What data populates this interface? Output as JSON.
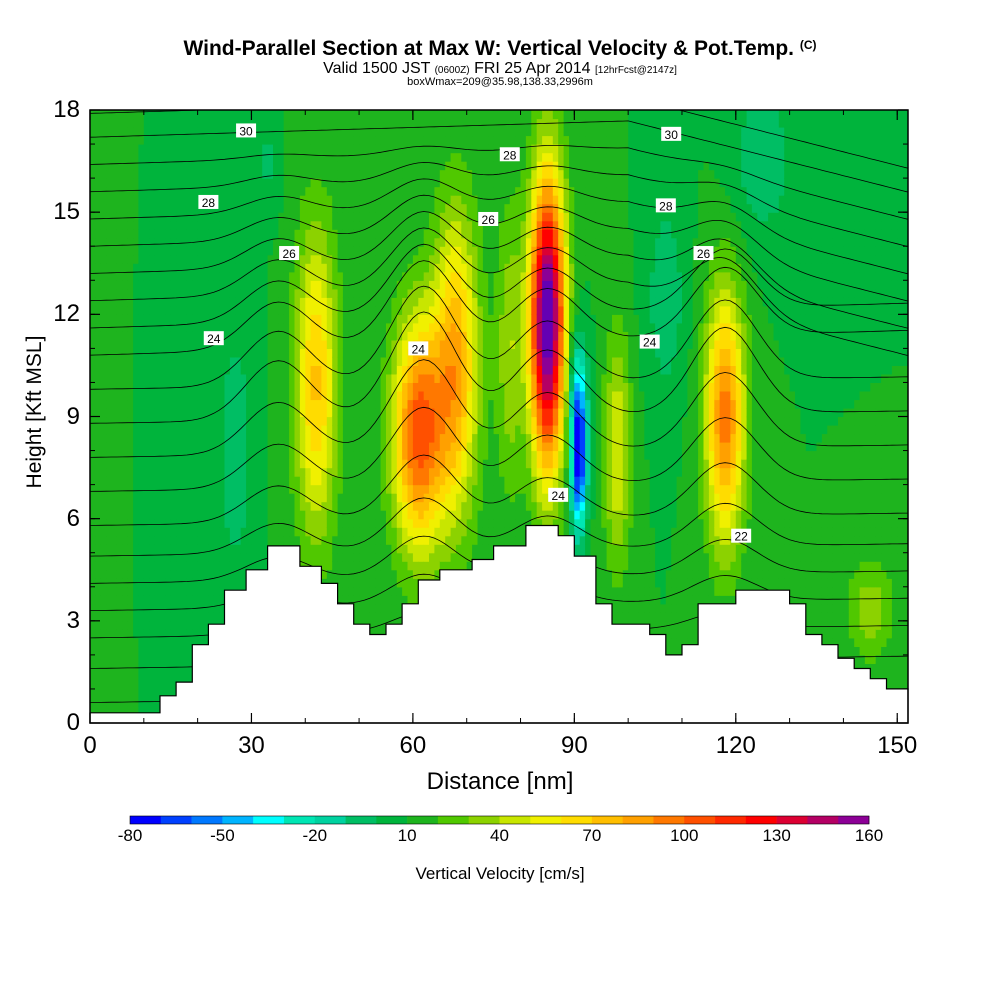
{
  "header": {
    "title": "Wind-Parallel Section at Max W: Vertical Velocity & Pot.Temp.",
    "copyright": "(C)",
    "valid_prefix": "Valid 1500 JST",
    "valid_utc": "(0600Z)",
    "valid_date": "FRI 25 Apr 2014",
    "forecast": "[12hrFcst@2147z]",
    "box_info": "boxWmax=209@35.98,138.33,2996m"
  },
  "chart_data": {
    "type": "heatmap",
    "xlabel": "Distance [nm]",
    "ylabel": "Height [Kft MSL]",
    "xlim": [
      0,
      152
    ],
    "ylim": [
      0,
      18
    ],
    "xticks": [
      "0",
      "30",
      "60",
      "90",
      "120",
      "150"
    ],
    "yticks": [
      "0",
      "3",
      "6",
      "9",
      "12",
      "15",
      "18"
    ],
    "colorbar": {
      "label": "Vertical Velocity [cm/s]",
      "tick_labels": [
        "-80",
        "-50",
        "-20",
        "10",
        "40",
        "70",
        "100",
        "130",
        "160"
      ],
      "levels": [
        -80,
        -70,
        -60,
        -50,
        -40,
        -30,
        -20,
        -10,
        0,
        10,
        20,
        30,
        40,
        50,
        60,
        70,
        80,
        90,
        100,
        110,
        120,
        130,
        140,
        150,
        160
      ],
      "colors": [
        "#0000ff",
        "#0040ff",
        "#0078ff",
        "#00b4ff",
        "#00ffff",
        "#00e6b4",
        "#00d2a0",
        "#00be64",
        "#00b43c",
        "#1eb41e",
        "#50c800",
        "#8cd200",
        "#c8e600",
        "#f0f000",
        "#ffdc00",
        "#ffbe00",
        "#ffa000",
        "#ff7800",
        "#ff5000",
        "#ff2800",
        "#ff0000",
        "#dc0032",
        "#b40064",
        "#8c0096",
        "#6400b4"
      ]
    },
    "terrain": [
      [
        0,
        0.3
      ],
      [
        13,
        0.3
      ],
      [
        13,
        0.8
      ],
      [
        16,
        0.8
      ],
      [
        16,
        1.2
      ],
      [
        19,
        1.2
      ],
      [
        19,
        2.3
      ],
      [
        22,
        2.3
      ],
      [
        22,
        2.9
      ],
      [
        25,
        2.9
      ],
      [
        25,
        3.9
      ],
      [
        29,
        3.9
      ],
      [
        29,
        4.5
      ],
      [
        33,
        4.5
      ],
      [
        33,
        5.2
      ],
      [
        39,
        5.2
      ],
      [
        39,
        4.6
      ],
      [
        43,
        4.6
      ],
      [
        43,
        4.1
      ],
      [
        46,
        4.1
      ],
      [
        46,
        3.5
      ],
      [
        49,
        3.5
      ],
      [
        49,
        2.9
      ],
      [
        52,
        2.9
      ],
      [
        52,
        2.6
      ],
      [
        55,
        2.6
      ],
      [
        55,
        2.9
      ],
      [
        58,
        2.9
      ],
      [
        58,
        3.5
      ],
      [
        61,
        3.5
      ],
      [
        61,
        4.2
      ],
      [
        65,
        4.2
      ],
      [
        65,
        4.5
      ],
      [
        71,
        4.5
      ],
      [
        71,
        4.8
      ],
      [
        75,
        4.8
      ],
      [
        75,
        5.2
      ],
      [
        81,
        5.2
      ],
      [
        81,
        5.8
      ],
      [
        87,
        5.8
      ],
      [
        87,
        5.5
      ],
      [
        90,
        5.5
      ],
      [
        90,
        4.9
      ],
      [
        94,
        4.9
      ],
      [
        94,
        3.5
      ],
      [
        97,
        3.5
      ],
      [
        97,
        2.9
      ],
      [
        104,
        2.9
      ],
      [
        104,
        2.6
      ],
      [
        107,
        2.6
      ],
      [
        107,
        2.0
      ],
      [
        110,
        2.0
      ],
      [
        110,
        2.3
      ],
      [
        113,
        2.3
      ],
      [
        113,
        3.5
      ],
      [
        120,
        3.5
      ],
      [
        120,
        3.9
      ],
      [
        130,
        3.9
      ],
      [
        130,
        3.5
      ],
      [
        133,
        3.5
      ],
      [
        133,
        2.6
      ],
      [
        136,
        2.6
      ],
      [
        136,
        2.3
      ],
      [
        139,
        2.3
      ],
      [
        139,
        1.9
      ],
      [
        142,
        1.9
      ],
      [
        142,
        1.6
      ],
      [
        145,
        1.6
      ],
      [
        145,
        1.3
      ],
      [
        148,
        1.3
      ],
      [
        148,
        1.0
      ],
      [
        152,
        1.0
      ],
      [
        152,
        0
      ],
      [
        0,
        0
      ]
    ],
    "w_features": [
      {
        "x": 85,
        "y": 11.8,
        "sx": 2.3,
        "sy": 3.0,
        "w": 165
      },
      {
        "x": 61,
        "y": 8.5,
        "sx": 3.4,
        "sy": 2.4,
        "w": 95
      },
      {
        "x": 68,
        "y": 10.5,
        "sx": 3.0,
        "sy": 3.2,
        "w": 70
      },
      {
        "x": 42,
        "y": 10.0,
        "sx": 2.8,
        "sy": 3.2,
        "w": 62
      },
      {
        "x": 118,
        "y": 9.0,
        "sx": 2.6,
        "sy": 2.6,
        "w": 85
      },
      {
        "x": 98,
        "y": 8.0,
        "sx": 1.8,
        "sy": 2.4,
        "w": 40
      },
      {
        "x": 90.8,
        "y": 7.8,
        "sx": 1.0,
        "sy": 1.5,
        "w": -90
      },
      {
        "x": 90.5,
        "y": 9.8,
        "sx": 1.3,
        "sy": 1.4,
        "w": -30
      },
      {
        "x": 27,
        "y": 8.0,
        "sx": 2.2,
        "sy": 2.6,
        "w": -18
      },
      {
        "x": 107,
        "y": 12.5,
        "sx": 2.5,
        "sy": 2.0,
        "w": -18
      },
      {
        "x": 125,
        "y": 16.5,
        "sx": 4.0,
        "sy": 1.6,
        "w": -18
      },
      {
        "x": 78,
        "y": 11.0,
        "sx": 1.8,
        "sy": 3.0,
        "w": 28
      },
      {
        "x": 145,
        "y": 3.3,
        "sx": 3.0,
        "sy": 1.0,
        "w": 28
      },
      {
        "x": 33,
        "y": 16.5,
        "sx": 1.5,
        "sy": 1.0,
        "w": -12
      }
    ],
    "theta_labels": [
      {
        "text": "30",
        "x": 29,
        "y": 17.4
      },
      {
        "text": "30",
        "x": 108,
        "y": 17.3
      },
      {
        "text": "28",
        "x": 22,
        "y": 15.3
      },
      {
        "text": "28",
        "x": 78,
        "y": 16.7
      },
      {
        "text": "28",
        "x": 107,
        "y": 15.2
      },
      {
        "text": "26",
        "x": 74,
        "y": 14.8
      },
      {
        "text": "26",
        "x": 37,
        "y": 13.8
      },
      {
        "text": "26",
        "x": 114,
        "y": 13.8
      },
      {
        "text": "24",
        "x": 23,
        "y": 11.3
      },
      {
        "text": "24",
        "x": 61,
        "y": 11.0
      },
      {
        "text": "24",
        "x": 104,
        "y": 11.2
      },
      {
        "text": "24",
        "x": 87,
        "y": 6.7
      },
      {
        "text": "22",
        "x": 121,
        "y": 5.5
      }
    ]
  }
}
